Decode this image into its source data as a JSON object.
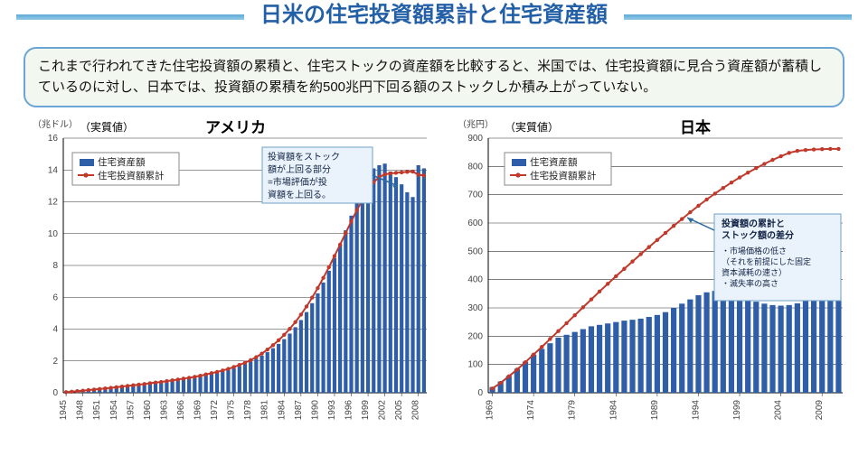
{
  "title": "日米の住宅投資額累計と住宅資産額",
  "description": "これまで行われてきた住宅投資額の累積と、住宅ストックの資産額を比較すると、米国では、住宅投資額に見合う資産額が蓄積しているのに対し、日本では、投資額の累積を約500兆円下回る額のストックしか積み上がっていない。",
  "legend": {
    "bars": "住宅資産額",
    "line": "住宅投資額累計"
  },
  "us": {
    "title": "アメリカ",
    "y_unit": "（兆ドル）",
    "real_label": "（実質値）",
    "ylim": [
      0,
      16
    ],
    "ytick_step": 2,
    "x_start": 1945,
    "x_end": 2009,
    "x_tick_step": 3,
    "bar_color": "#2f5ea8",
    "line_color": "#c0392b",
    "marker_color": "#c0392b",
    "grid_color": "#333333",
    "bg": "#ffffff",
    "annotation": {
      "lines": [
        "投資額をストック",
        "額が上回る部分",
        "=市場評価が投",
        "資額を上回る。"
      ]
    },
    "bars": [
      0.05,
      0.08,
      0.1,
      0.14,
      0.18,
      0.22,
      0.25,
      0.29,
      0.32,
      0.36,
      0.4,
      0.44,
      0.47,
      0.5,
      0.54,
      0.58,
      0.63,
      0.67,
      0.71,
      0.76,
      0.82,
      0.88,
      0.93,
      0.98,
      1.04,
      1.12,
      1.19,
      1.26,
      1.34,
      1.43,
      1.54,
      1.67,
      1.81,
      1.96,
      2.13,
      2.33,
      2.55,
      2.8,
      3.07,
      3.37,
      3.72,
      4.12,
      4.57,
      5.07,
      5.63,
      6.25,
      6.93,
      7.67,
      8.47,
      9.32,
      10.21,
      11.13,
      12.04,
      12.9,
      13.63,
      14.1,
      14.3,
      14.4,
      13.9,
      13.55,
      13.1,
      12.6,
      12.3,
      14.3,
      14.1
    ],
    "line": [
      0.04,
      0.07,
      0.1,
      0.13,
      0.17,
      0.2,
      0.24,
      0.27,
      0.31,
      0.35,
      0.39,
      0.43,
      0.47,
      0.51,
      0.55,
      0.6,
      0.64,
      0.68,
      0.73,
      0.78,
      0.83,
      0.89,
      0.94,
      1.0,
      1.07,
      1.15,
      1.23,
      1.31,
      1.4,
      1.5,
      1.62,
      1.75,
      1.89,
      2.05,
      2.24,
      2.46,
      2.71,
      2.99,
      3.3,
      3.64,
      4.02,
      4.44,
      4.91,
      5.42,
      5.98,
      6.58,
      7.22,
      7.89,
      8.59,
      9.31,
      10.04,
      10.77,
      11.47,
      12.13,
      12.72,
      13.22,
      13.56,
      13.72,
      13.78,
      13.82,
      13.85,
      13.88,
      13.9,
      13.7,
      13.65
    ]
  },
  "jp": {
    "title": "日本",
    "y_unit": "（兆円）",
    "real_label": "（実質値）",
    "ylim": [
      0,
      900
    ],
    "ytick_step": 100,
    "x_start": 1969,
    "x_end": 2011,
    "x_tick_step": 5,
    "bar_color": "#2f5ea8",
    "line_color": "#c0392b",
    "marker_color": "#c0392b",
    "grid_color": "#333333",
    "bg": "#ffffff",
    "annotation": {
      "title_lines": [
        "投資額の累計と",
        "ストック額の差分"
      ],
      "bullets": [
        "・市場価格の低さ",
        "（それを前提にした固定",
        "資本減耗の速さ）",
        "・滅失率の高さ"
      ]
    },
    "bars": [
      20,
      40,
      60,
      85,
      110,
      135,
      155,
      175,
      195,
      205,
      215,
      225,
      235,
      240,
      245,
      250,
      255,
      258,
      262,
      268,
      275,
      285,
      300,
      315,
      330,
      345,
      355,
      360,
      358,
      350,
      340,
      330,
      322,
      315,
      310,
      308,
      310,
      316,
      326,
      342,
      362,
      355,
      340
    ],
    "line": [
      15,
      35,
      58,
      82,
      108,
      135,
      162,
      190,
      218,
      246,
      274,
      302,
      330,
      358,
      385,
      412,
      438,
      464,
      490,
      515,
      540,
      565,
      590,
      614,
      638,
      661,
      683,
      704,
      724,
      743,
      761,
      778,
      794,
      809,
      823,
      836,
      848,
      855,
      858,
      860,
      861,
      862,
      862
    ]
  }
}
